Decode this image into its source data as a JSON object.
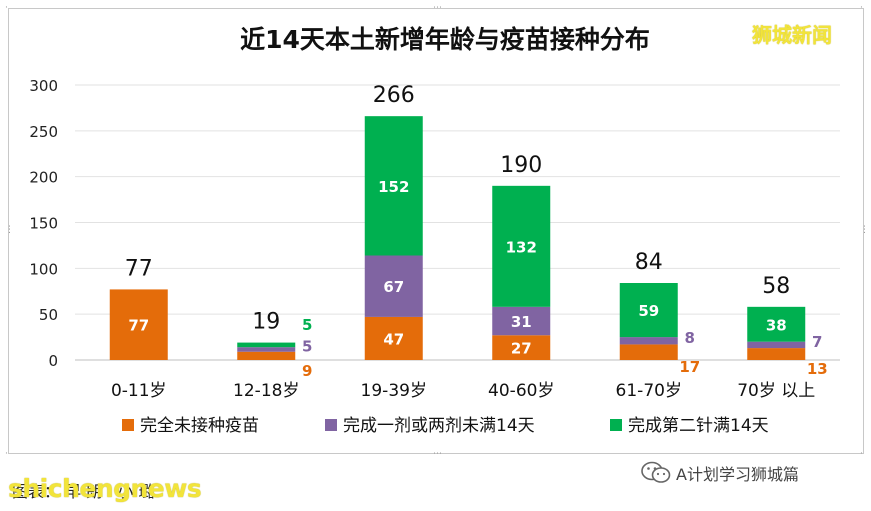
{
  "chart_data": {
    "type": "bar",
    "stacked": true,
    "title": "近14天本土新增年龄与疫苗接种分布",
    "categories": [
      "0-11岁",
      "12-18岁",
      "19-39岁",
      "40-60岁",
      "61-70岁",
      "70岁 以上"
    ],
    "series": [
      {
        "name": "完全未接种疫苗",
        "color": "#e46c0a",
        "values": [
          77,
          9,
          47,
          27,
          17,
          13
        ]
      },
      {
        "name": "完成一剂或两剂未满14天",
        "color": "#8064a2",
        "values": [
          0,
          5,
          67,
          31,
          8,
          7
        ]
      },
      {
        "name": "完成第二针满14天",
        "color": "#00b050",
        "values": [
          0,
          5,
          152,
          132,
          59,
          38
        ]
      }
    ],
    "totals": [
      77,
      19,
      266,
      190,
      84,
      58
    ],
    "ylim": [
      0,
      300
    ],
    "yticks": [
      0,
      50,
      100,
      150,
      200,
      250,
      300
    ],
    "grid": true,
    "legend": "bottom"
  },
  "watermarks": {
    "top_right": "狮城新闻",
    "bottom_left": "shichengnews"
  },
  "source_text": "图表：  早 朗 · 小 璐",
  "wechat_account": "A计划学习狮城篇"
}
